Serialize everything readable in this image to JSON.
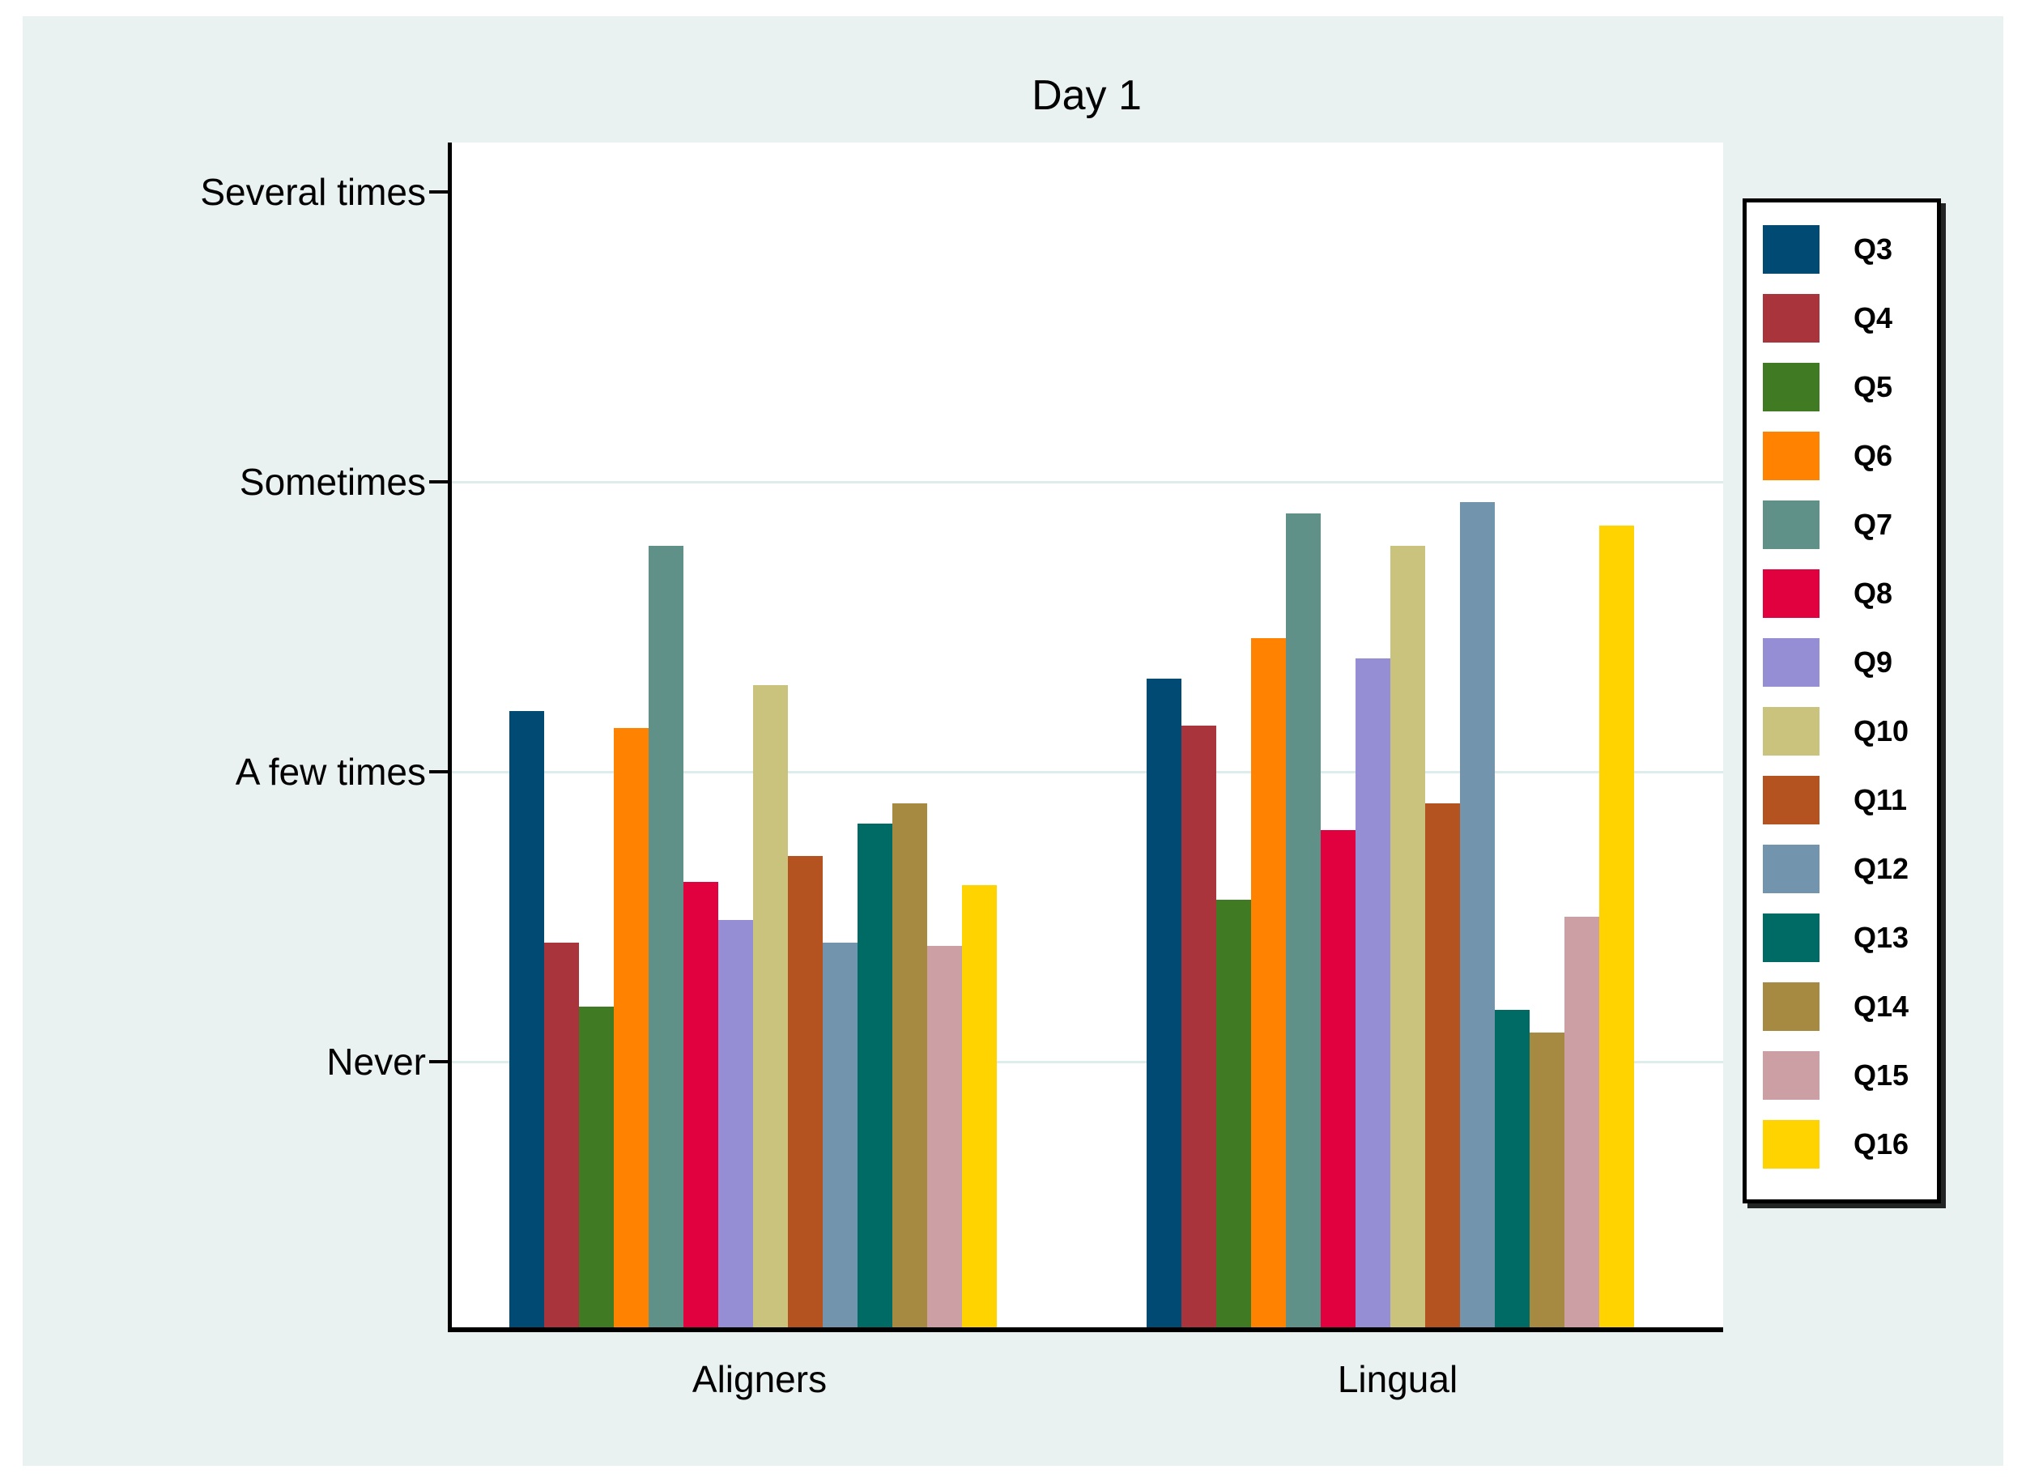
{
  "chart_data": {
    "type": "bar",
    "title": "Day 1",
    "categories": [
      "Aligners",
      "Lingual"
    ],
    "y_axis": {
      "tick_labels": [
        "Never",
        "A few times",
        "Sometimes",
        "Several times"
      ],
      "tick_values": [
        1,
        2,
        3,
        4
      ],
      "gridlines_at_values": [
        1,
        2,
        3
      ],
      "grid": true
    },
    "legend_position": "right",
    "series": [
      {
        "name": "Q3",
        "color": "#004a73",
        "values": [
          2.21,
          2.32
        ]
      },
      {
        "name": "Q4",
        "color": "#a9343c",
        "values": [
          1.41,
          2.16
        ]
      },
      {
        "name": "Q5",
        "color": "#407a22",
        "values": [
          1.19,
          1.56
        ]
      },
      {
        "name": "Q6",
        "color": "#ff8200",
        "values": [
          2.15,
          2.46
        ]
      },
      {
        "name": "Q7",
        "color": "#5f9189",
        "values": [
          2.78,
          2.89
        ]
      },
      {
        "name": "Q8",
        "color": "#e0013e",
        "values": [
          1.62,
          1.8
        ]
      },
      {
        "name": "Q9",
        "color": "#968ed5",
        "values": [
          1.49,
          2.39
        ]
      },
      {
        "name": "Q10",
        "color": "#cac37d",
        "values": [
          2.3,
          2.78
        ]
      },
      {
        "name": "Q11",
        "color": "#b45220",
        "values": [
          1.71,
          1.89
        ]
      },
      {
        "name": "Q12",
        "color": "#7295ad",
        "values": [
          1.41,
          2.93
        ]
      },
      {
        "name": "Q13",
        "color": "#006b64",
        "values": [
          1.82,
          1.18
        ]
      },
      {
        "name": "Q14",
        "color": "#a68a42",
        "values": [
          1.89,
          1.1
        ]
      },
      {
        "name": "Q15",
        "color": "#cb9fa3",
        "values": [
          1.4,
          1.5
        ]
      },
      {
        "name": "Q16",
        "color": "#ffd300",
        "values": [
          1.61,
          2.85
        ]
      }
    ]
  }
}
